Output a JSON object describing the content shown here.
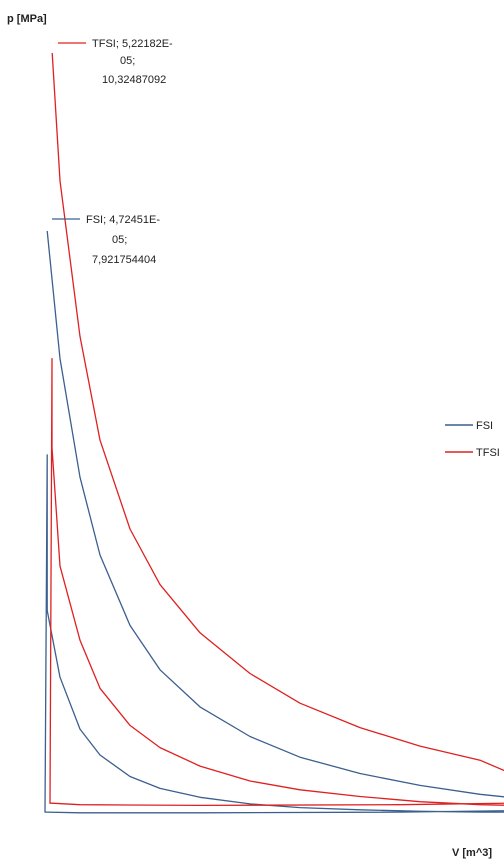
{
  "chart_data": {
    "type": "line",
    "title": "",
    "xlabel": "V [m^3]",
    "ylabel": "p [MPa]",
    "xlim": [
      0,
      0.00055
    ],
    "ylim": [
      0,
      10.5
    ],
    "grid": false,
    "legend_position": "right",
    "series": [
      {
        "name": "FSI",
        "color": "#3b5f8f",
        "x": [
          4.72451e-05,
          6e-05,
          8e-05,
          0.0001,
          0.00013,
          0.00016,
          0.0002,
          0.00025,
          0.0003,
          0.00036,
          0.00042,
          0.00048,
          0.000515,
          0.00052,
          0.000515,
          0.0004,
          0.0002,
          8e-05,
          4.72e-05,
          4.5e-05,
          4.72e-05,
          4.72e-05,
          6e-05,
          8e-05,
          0.0001,
          0.00013,
          0.00016,
          0.0002,
          0.00025,
          0.0003,
          0.00036,
          0.00042,
          0.00048,
          0.000515
        ],
        "y": [
          7.921754404,
          6.2,
          4.6,
          3.55,
          2.6,
          2.0,
          1.5,
          1.1,
          0.82,
          0.6,
          0.44,
          0.32,
          0.27,
          0.15,
          0.1,
          0.08,
          0.07,
          0.07,
          0.08,
          0.08,
          4.9,
          2.8,
          1.9,
          1.2,
          0.85,
          0.56,
          0.4,
          0.28,
          0.19,
          0.14,
          0.11,
          0.09,
          0.08,
          0.08
        ]
      },
      {
        "name": "TFSI",
        "color": "#e02020",
        "x": [
          5.22182e-05,
          6e-05,
          8e-05,
          0.0001,
          0.00013,
          0.00016,
          0.0002,
          0.00025,
          0.0003,
          0.00036,
          0.00042,
          0.00048,
          0.00052,
          0.000523,
          0.00051,
          0.0004,
          0.0002,
          8e-05,
          5.2e-05,
          5e-05,
          5.2e-05,
          5.2e-05,
          6e-05,
          8e-05,
          0.0001,
          0.00013,
          0.00016,
          0.0002,
          0.00025,
          0.0003,
          0.00036,
          0.00042,
          0.00048,
          0.000515
        ],
        "y": [
          10.32487092,
          8.6,
          6.5,
          5.1,
          3.9,
          3.15,
          2.5,
          1.95,
          1.55,
          1.22,
          0.97,
          0.78,
          0.55,
          0.25,
          0.2,
          0.18,
          0.17,
          0.18,
          0.2,
          0.2,
          6.2,
          5.0,
          3.4,
          2.4,
          1.75,
          1.25,
          0.95,
          0.7,
          0.5,
          0.38,
          0.29,
          0.22,
          0.18,
          0.17
        ]
      }
    ],
    "annotations": [
      {
        "series": "TFSI",
        "lines": [
          "TFSI; 5,22182E-",
          "05;",
          "10,32487092"
        ],
        "x": 5.22182e-05,
        "y": 10.32487092
      },
      {
        "series": "FSI",
        "lines": [
          "FSI; 4,72451E-",
          "05;",
          "7,921754404"
        ],
        "x": 4.72451e-05,
        "y": 7.921754404
      }
    ]
  }
}
